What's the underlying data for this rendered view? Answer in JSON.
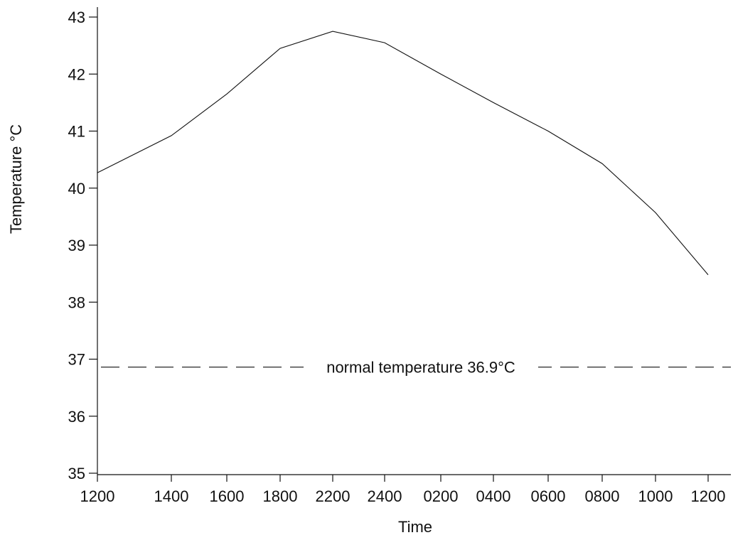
{
  "chart_data": {
    "type": "line",
    "title": "",
    "xlabel": "Time",
    "ylabel": "Temperature °C",
    "categories": [
      "1200",
      "1400",
      "1600",
      "1800",
      "2200",
      "2400",
      "0200",
      "0400",
      "0600",
      "0800",
      "1000",
      "1200"
    ],
    "values": [
      40.27,
      40.92,
      41.65,
      42.45,
      42.75,
      42.55,
      42.0,
      41.5,
      41.0,
      40.43,
      39.57,
      38.48
    ],
    "yticks": [
      35,
      36,
      37,
      38,
      39,
      40,
      41,
      42,
      43
    ],
    "ylim": [
      35,
      43
    ],
    "grid": false,
    "reference_line": {
      "value": 36.86,
      "label": "normal temperature 36.9°C",
      "style": "dashed"
    }
  }
}
